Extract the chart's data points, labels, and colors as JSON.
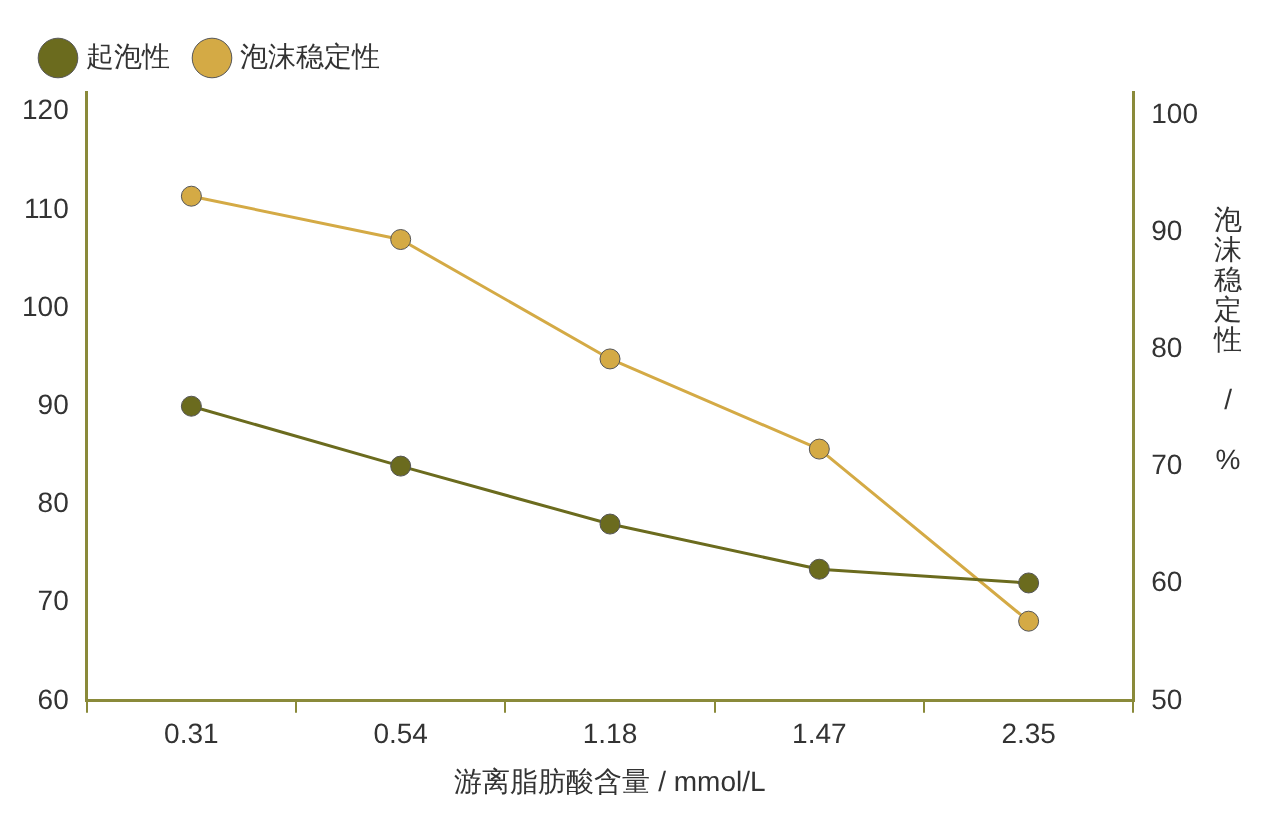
{
  "chart_data": {
    "type": "line",
    "xlabel": "游离脂肪酸含量 / mmol/L",
    "y2label": "泡沫稳定性 / %",
    "categories": [
      "0.31",
      "0.54",
      "1.18",
      "1.47",
      "2.35"
    ],
    "series": [
      {
        "name": "起泡性",
        "color": "#6b6b1e",
        "values": [
          90,
          83.9,
          78,
          73.4,
          72
        ]
      },
      {
        "name": "泡沫稳定性",
        "color": "#d4aa45",
        "values": [
          93.1,
          89.4,
          79.2,
          71.5,
          56.8
        ],
        "axis": "y2"
      }
    ],
    "ylim": [
      60,
      122
    ],
    "yticks": [
      60,
      70,
      80,
      90,
      100,
      110,
      120
    ],
    "y2lim": [
      50,
      102
    ],
    "y2ticks": [
      50,
      60,
      70,
      80,
      90,
      100
    ],
    "grid": false,
    "legend": "top left",
    "marker": "circle",
    "line_style": "solid"
  }
}
